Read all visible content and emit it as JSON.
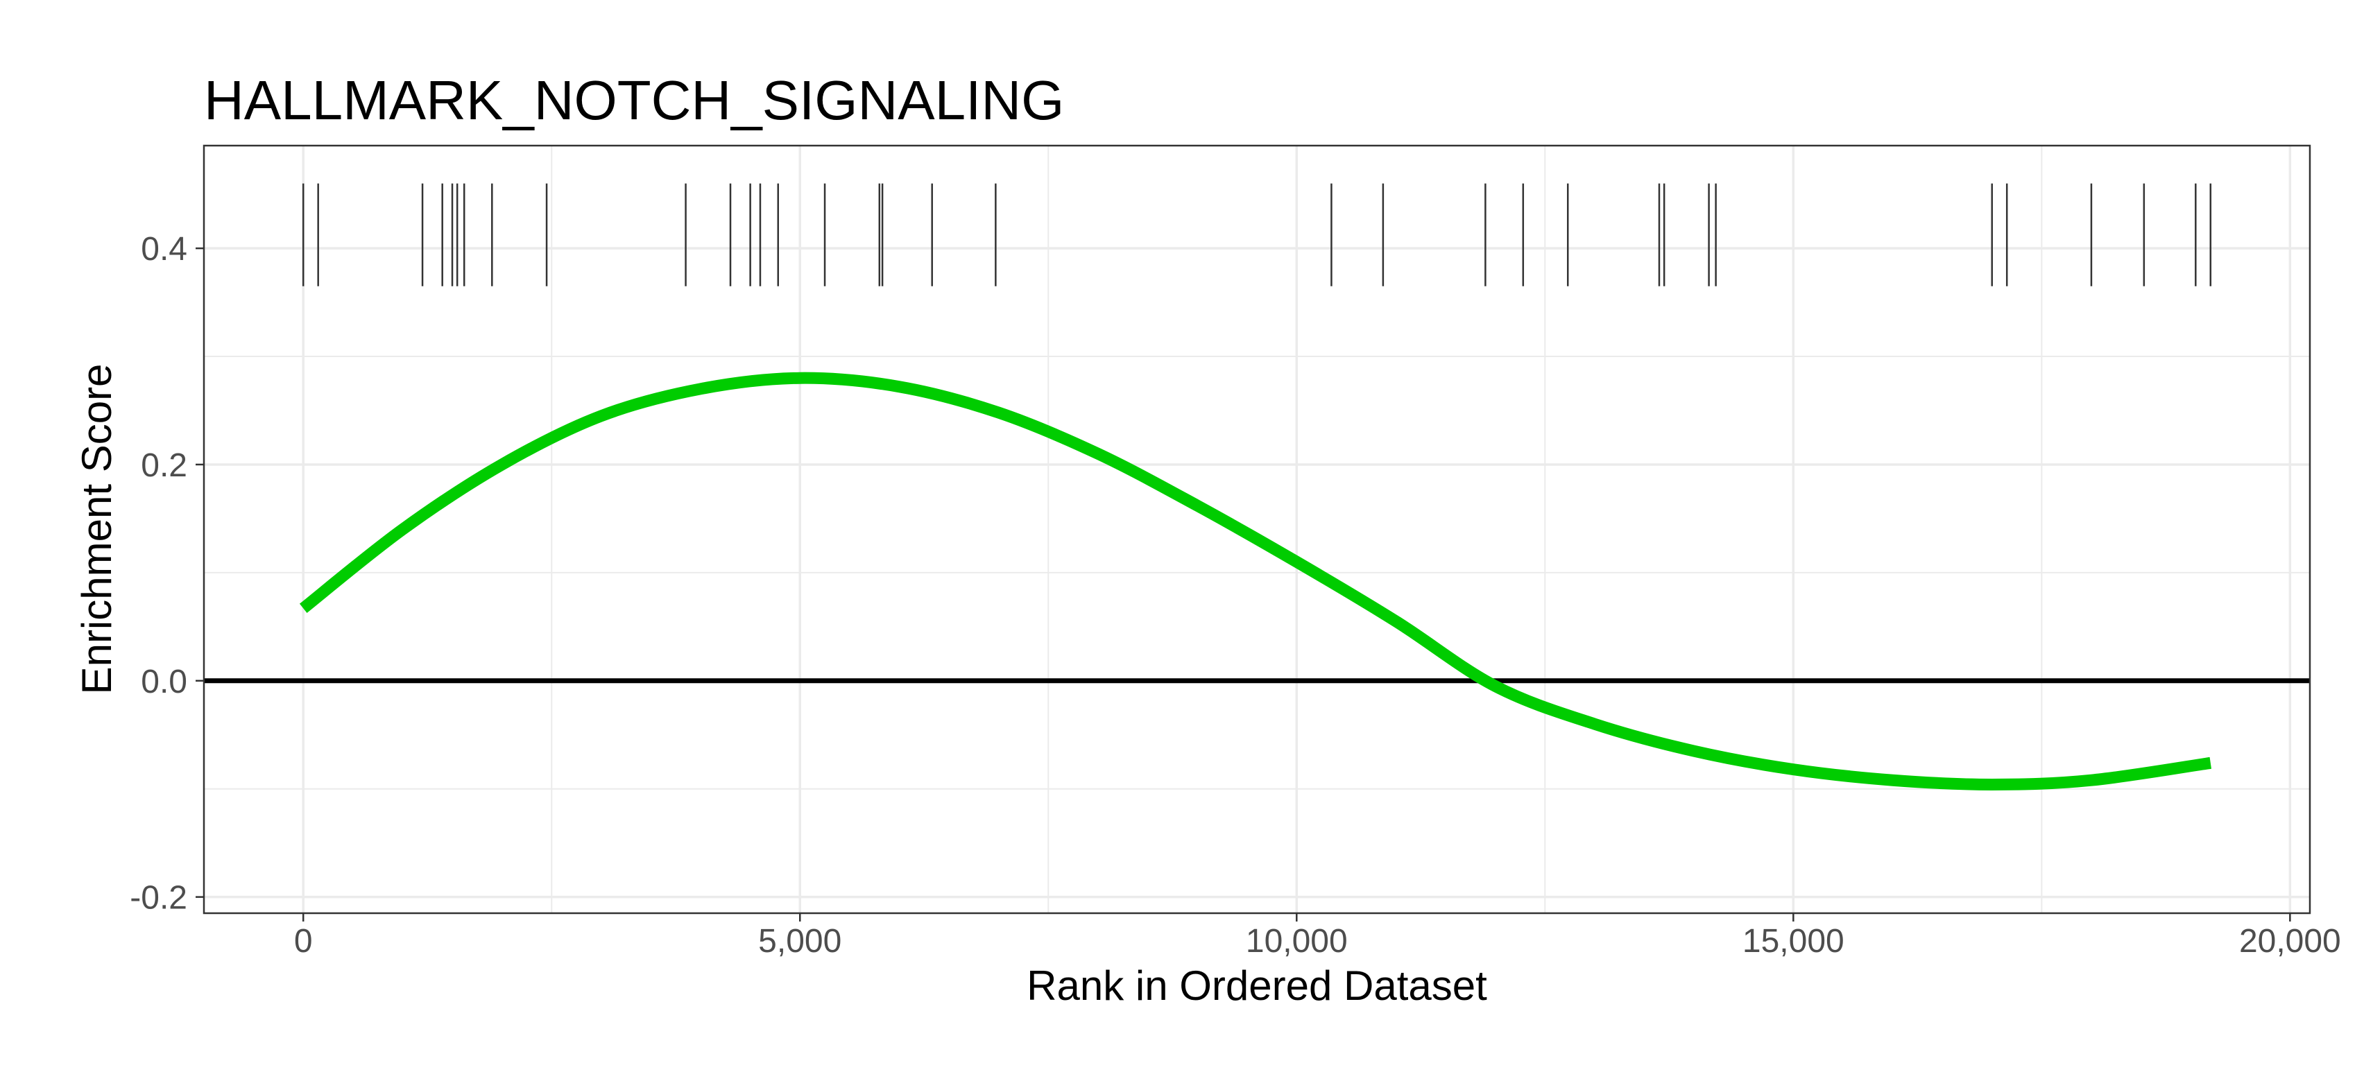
{
  "chart_data": {
    "type": "line",
    "title": "HALLMARK_NOTCH_SIGNALING",
    "xlabel": "Rank in Ordered Dataset",
    "ylabel": "Enrichment Score",
    "xlim": [
      -1000,
      20200
    ],
    "ylim": [
      -0.215,
      0.495
    ],
    "x_ticks": [
      0,
      5000,
      10000,
      15000,
      20000
    ],
    "x_tick_labels": [
      "0",
      "5,000",
      "10,000",
      "15,000",
      "20,000"
    ],
    "y_ticks": [
      -0.2,
      0.0,
      0.2,
      0.4
    ],
    "y_tick_labels": [
      "-0.2",
      "0.0",
      "0.2",
      "0.4"
    ],
    "grid": true,
    "zero_line": 0.0,
    "series": [
      {
        "color": "#00cc00",
        "x": [
          0,
          1000,
          2000,
          3000,
          4000,
          5000,
          6000,
          7000,
          8000,
          9000,
          10000,
          11000,
          12000,
          13000,
          14000,
          15000,
          16000,
          17000,
          18000,
          19200
        ],
        "y": [
          0.067,
          0.14,
          0.2,
          0.245,
          0.27,
          0.28,
          0.272,
          0.248,
          0.21,
          0.162,
          0.11,
          0.055,
          -0.005,
          -0.04,
          -0.065,
          -0.082,
          -0.092,
          -0.096,
          -0.092,
          -0.076
        ]
      }
    ],
    "hit_ticks": [
      0,
      150,
      1200,
      1400,
      1500,
      1550,
      1620,
      1900,
      2450,
      3850,
      4300,
      4500,
      4600,
      4780,
      5250,
      5800,
      5830,
      6330,
      6970,
      10350,
      10870,
      11900,
      12280,
      12730,
      13650,
      13700,
      14150,
      14220,
      17000,
      17150,
      18000,
      18530,
      19050,
      19200
    ],
    "hit_tick_y": [
      0.365,
      0.46
    ],
    "colors": {
      "curve": "#00cc00",
      "hit_tick": "#333333",
      "zero_line": "#000000",
      "grid": "#ebebeb",
      "panel_border": "#333333"
    }
  }
}
